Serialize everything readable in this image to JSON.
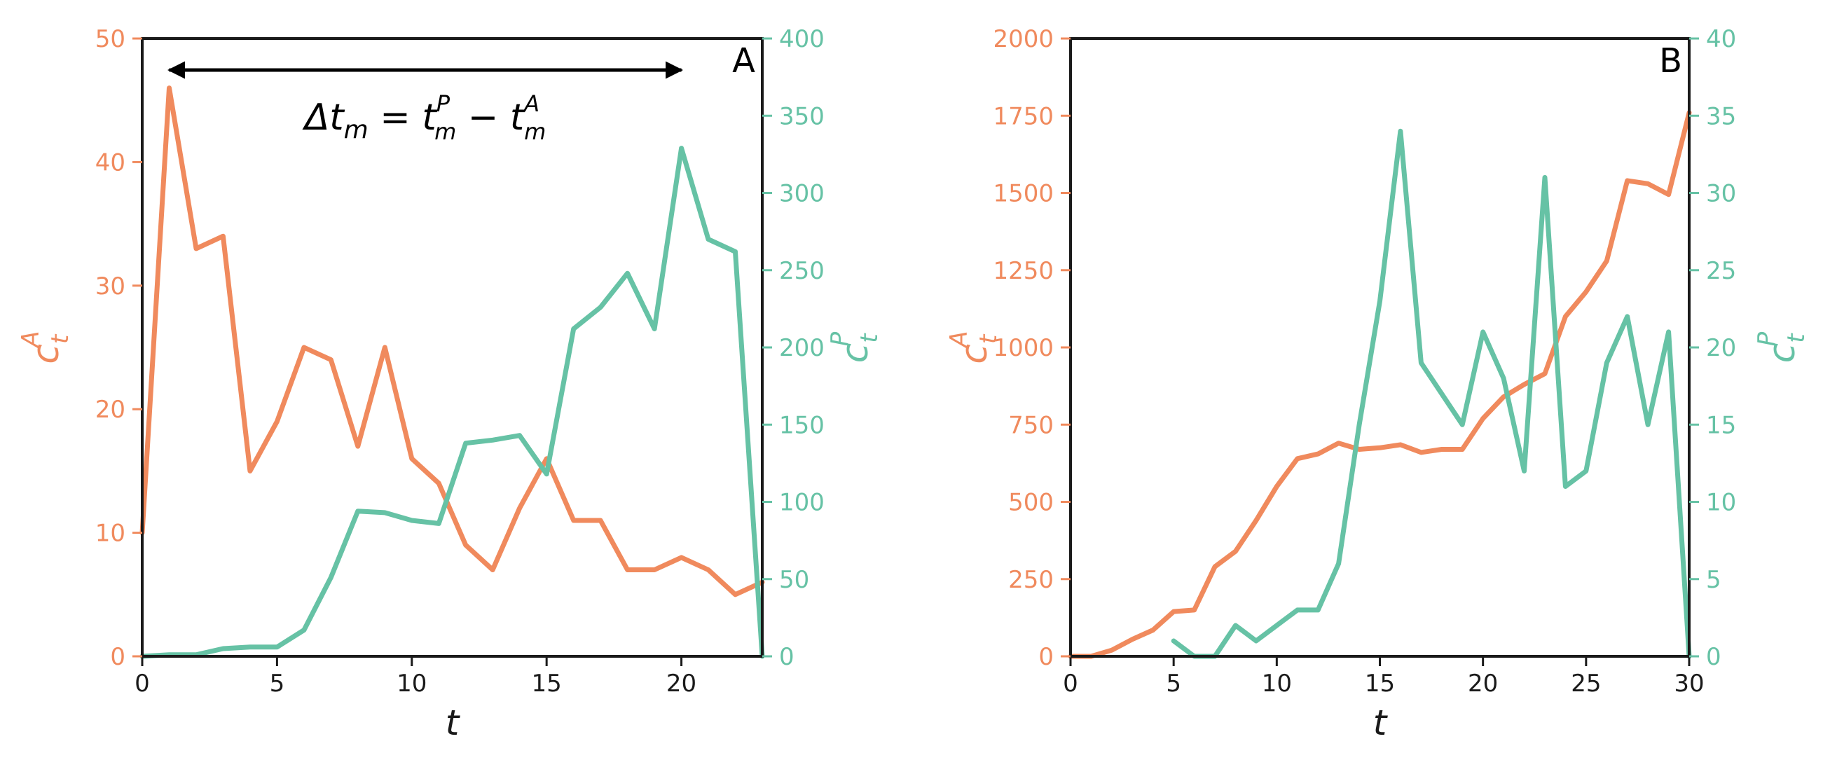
{
  "colors": {
    "orange": "#F08A5D",
    "green": "#66C2A5",
    "axis": "#1a1a1a"
  },
  "chart_data": [
    {
      "type": "line",
      "panel_label": "A",
      "xlabel": "t",
      "ylabel_left": {
        "base": "c",
        "sub": "t",
        "sup": "A"
      },
      "ylabel_right": {
        "base": "c",
        "sub": "t",
        "sup": "P"
      },
      "xlim": [
        0,
        23
      ],
      "ylim_left": [
        0,
        50
      ],
      "ylim_right": [
        0,
        400
      ],
      "xticks": [
        0,
        5,
        10,
        15,
        20
      ],
      "yticks_left": [
        0,
        10,
        20,
        30,
        40,
        50
      ],
      "yticks_right": [
        0,
        50,
        100,
        150,
        200,
        250,
        300,
        350,
        400
      ],
      "annotation": {
        "text": {
          "prefix": "Δt",
          "sub": "m",
          "eq": " = ",
          "t1": "t",
          "t1_sup": "P",
          "t1_sub": "m",
          "minus": " − ",
          "t2": "t",
          "t2_sup": "A",
          "t2_sub": "m"
        },
        "arrow_from_x": 1,
        "arrow_to_x": 20
      },
      "series": [
        {
          "axis": "left",
          "color": "#F08A5D",
          "x": [
            0,
            1,
            2,
            3,
            4,
            5,
            6,
            7,
            8,
            9,
            10,
            11,
            12,
            13,
            14,
            15,
            16,
            17,
            18,
            19,
            20,
            21,
            22,
            23
          ],
          "values": [
            10,
            46,
            33,
            34,
            15,
            19,
            25,
            24,
            17,
            25,
            16,
            14,
            9,
            7,
            12,
            16,
            11,
            11,
            7,
            7,
            8,
            7,
            5,
            6
          ]
        },
        {
          "axis": "right",
          "color": "#66C2A5",
          "x": [
            0,
            1,
            2,
            3,
            4,
            5,
            6,
            7,
            8,
            9,
            10,
            11,
            12,
            13,
            14,
            15,
            16,
            17,
            18,
            19,
            20,
            21,
            22,
            23
          ],
          "values": [
            0,
            1,
            1,
            5,
            6,
            6,
            17,
            51,
            94,
            93,
            88,
            86,
            138,
            140,
            143,
            118,
            212,
            226,
            248,
            212,
            329,
            270,
            262,
            0
          ]
        }
      ]
    },
    {
      "type": "line",
      "panel_label": "B",
      "xlabel": "t",
      "ylabel_left": {
        "base": "c",
        "sub": "t",
        "sup": "A"
      },
      "ylabel_right": {
        "base": "c",
        "sub": "t",
        "sup": "P"
      },
      "xlim": [
        0,
        30
      ],
      "ylim_left": [
        0,
        2000
      ],
      "ylim_right": [
        0,
        40
      ],
      "xticks": [
        0,
        5,
        10,
        15,
        20,
        25,
        30
      ],
      "yticks_left": [
        0,
        250,
        500,
        750,
        1000,
        1250,
        1500,
        1750,
        2000
      ],
      "yticks_right": [
        0,
        5,
        10,
        15,
        20,
        25,
        30,
        35,
        40
      ],
      "series": [
        {
          "axis": "left",
          "color": "#F08A5D",
          "x": [
            0,
            1,
            2,
            3,
            4,
            5,
            6,
            7,
            8,
            9,
            10,
            11,
            12,
            13,
            14,
            15,
            16,
            17,
            18,
            19,
            20,
            21,
            22,
            23,
            24,
            25,
            26,
            27,
            28,
            29,
            30
          ],
          "values": [
            0,
            0,
            20,
            55,
            85,
            145,
            150,
            290,
            340,
            440,
            550,
            640,
            655,
            690,
            670,
            675,
            685,
            660,
            670,
            670,
            770,
            840,
            880,
            915,
            1100,
            1180,
            1280,
            1540,
            1530,
            1495,
            1760
          ]
        },
        {
          "axis": "right",
          "color": "#66C2A5",
          "x": [
            5,
            6,
            7,
            8,
            9,
            10,
            11,
            12,
            13,
            14,
            15,
            16,
            17,
            18,
            19,
            20,
            21,
            22,
            23,
            24,
            25,
            26,
            27,
            28,
            29,
            30
          ],
          "values": [
            1,
            0,
            0,
            2,
            1,
            2,
            3,
            3,
            6,
            15,
            23,
            34,
            19,
            17,
            15,
            21,
            18,
            12,
            31,
            11,
            12,
            19,
            22,
            15,
            21,
            0
          ]
        }
      ]
    }
  ]
}
